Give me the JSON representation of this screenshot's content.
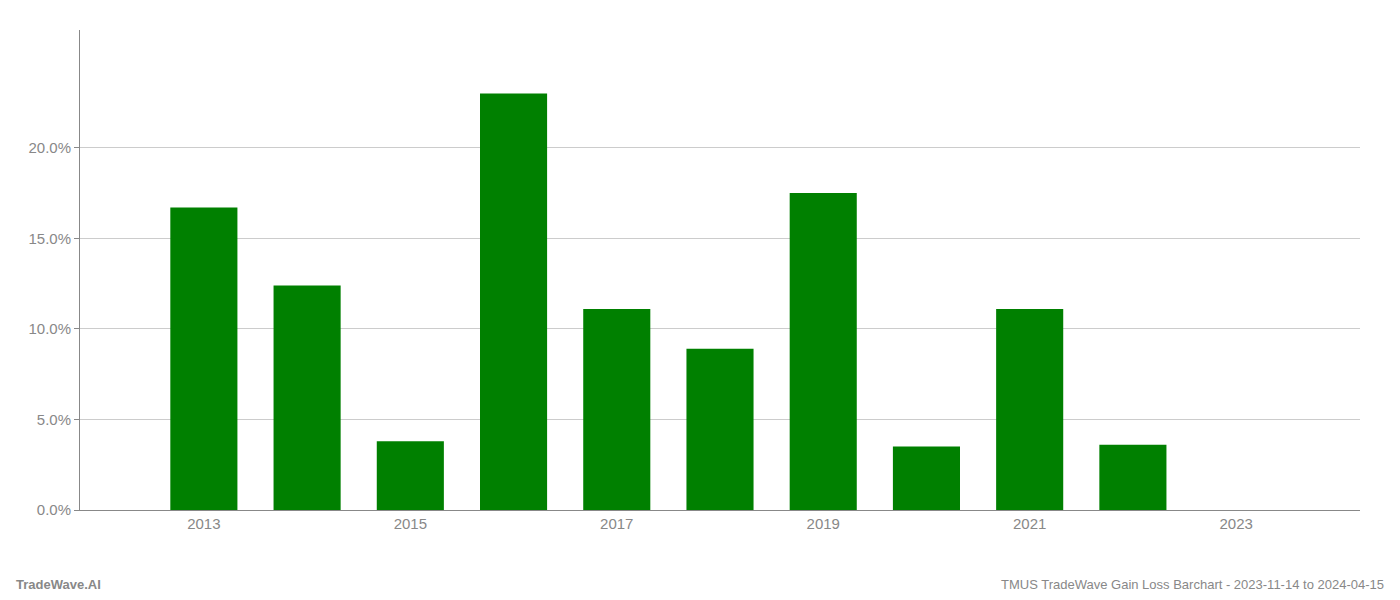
{
  "chart_data": {
    "type": "bar",
    "x": [
      2013,
      2014,
      2015,
      2016,
      2017,
      2018,
      2019,
      2020,
      2021,
      2022
    ],
    "values": [
      0.167,
      0.124,
      0.038,
      0.23,
      0.111,
      0.089,
      0.175,
      0.035,
      0.111,
      0.036
    ],
    "color": "#008000",
    "xlim": [
      2011.8,
      2024.2
    ],
    "xticks": [
      2013,
      2015,
      2017,
      2019,
      2021,
      2023
    ],
    "ylim": [
      0,
      0.265
    ],
    "yticks": [
      {
        "value": 0.0,
        "label": "0.0%"
      },
      {
        "value": 0.05,
        "label": "5.0%"
      },
      {
        "value": 0.1,
        "label": "10.0%"
      },
      {
        "value": 0.15,
        "label": "15.0%"
      },
      {
        "value": 0.2,
        "label": "20.0%"
      }
    ],
    "grid": "y",
    "annotations": [
      "TradeWave.AI",
      "TMUS TradeWave Gain Loss Barchart - 2023-11-14 to 2024-04-15"
    ]
  }
}
